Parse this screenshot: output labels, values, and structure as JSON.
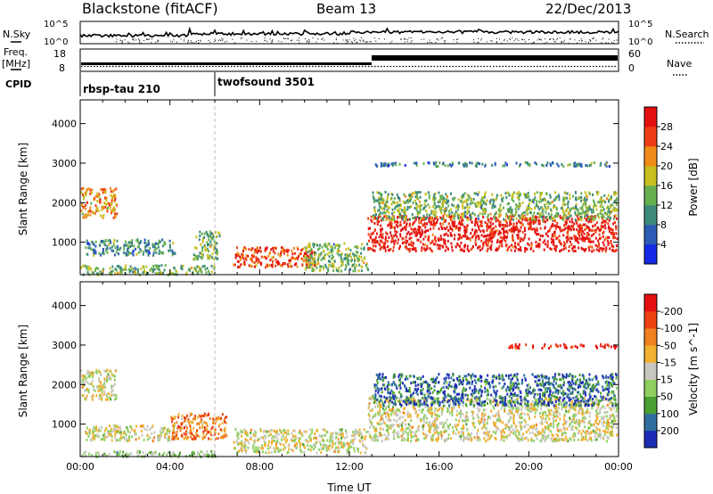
{
  "header": {
    "title": "Blackstone (fitACF)",
    "beam": "Beam 13",
    "date": "22/Dec/2013"
  },
  "panel_labels": {
    "nsky": "N.Sky",
    "nsearch": "N.Search",
    "freq_line1": "Freq.",
    "freq_line2": "[MHz]",
    "nave": "Nave",
    "cpid": "CPID",
    "nsky_top": "10^5",
    "nsky_bot": "10^0",
    "nsearch_top": "10^5",
    "nsearch_bot": "10^0",
    "freq_top": "18",
    "freq_bot": "8",
    "nave_top": "60",
    "nave_bot": "0"
  },
  "cpid_segments": [
    {
      "label": "rbsp-tau 210",
      "start_hour": 0
    },
    {
      "label": "twofsound 3501",
      "start_hour": 6
    }
  ],
  "chart_data": [
    {
      "type": "heatmap",
      "quantity": "Power",
      "xlabel": "",
      "ylabel": "Slant Range [km]",
      "xlim": [
        0,
        24
      ],
      "ylim": [
        180,
        4600
      ],
      "yticks": [
        1000,
        2000,
        3000,
        4000
      ],
      "colorbar": {
        "label": "Power [dB]",
        "ticks": [
          "4",
          "8",
          "12",
          "16",
          "20",
          "24",
          "28"
        ],
        "colors": [
          "#1428e6",
          "#2b5bb5",
          "#3d8a7a",
          "#66b050",
          "#c8c020",
          "#f08c18",
          "#ee3d14",
          "#e41010"
        ]
      },
      "scatter_regions": [
        {
          "hours": [
            0.0,
            1.6
          ],
          "range_km": [
            1650,
            2400
          ],
          "level": 5
        },
        {
          "hours": [
            0.2,
            4.2
          ],
          "range_km": [
            700,
            1100
          ],
          "level": 2
        },
        {
          "hours": [
            0.0,
            6.0
          ],
          "range_km": [
            200,
            450
          ],
          "level": 3
        },
        {
          "hours": [
            5.0,
            6.2
          ],
          "range_km": [
            600,
            1300
          ],
          "level": 3
        },
        {
          "hours": [
            6.8,
            10.5
          ],
          "range_km": [
            400,
            900
          ],
          "level": 6
        },
        {
          "hours": [
            10.0,
            12.8
          ],
          "range_km": [
            300,
            1000
          ],
          "level": 3
        },
        {
          "hours": [
            12.8,
            23.9
          ],
          "range_km": [
            800,
            1700
          ],
          "level": 7
        },
        {
          "hours": [
            13.0,
            23.9
          ],
          "range_km": [
            1600,
            2300
          ],
          "level": 3
        },
        {
          "hours": [
            13.0,
            23.9
          ],
          "range_km": [
            2950,
            3050
          ],
          "level": 2
        }
      ]
    },
    {
      "type": "heatmap",
      "quantity": "Velocity",
      "xlabel": "Time UT",
      "ylabel": "Slant Range [km]",
      "xlim": [
        0,
        24
      ],
      "ylim": [
        180,
        4600
      ],
      "yticks": [
        1000,
        2000,
        3000,
        4000
      ],
      "xticks": [
        "00:00",
        "04:00",
        "08:00",
        "12:00",
        "16:00",
        "20:00",
        "00:00"
      ],
      "colorbar": {
        "label": "Velocity [m s^-1]",
        "ticks": [
          "200",
          "100",
          "50",
          "15",
          "-15",
          "-50",
          "-100",
          "-200"
        ],
        "colors": [
          "#1c2cb4",
          "#2f6ea0",
          "#4aa030",
          "#8fd060",
          "#c8c8c0",
          "#f0b030",
          "#f08020",
          "#ee4010",
          "#e41010"
        ]
      },
      "scatter_regions": [
        {
          "hours": [
            0.0,
            1.6
          ],
          "range_km": [
            1650,
            2400
          ],
          "level": 4
        },
        {
          "hours": [
            0.2,
            4.2
          ],
          "range_km": [
            600,
            1000
          ],
          "level": 4
        },
        {
          "hours": [
            0.0,
            6.0
          ],
          "range_km": [
            200,
            350
          ],
          "level": 3
        },
        {
          "hours": [
            4.0,
            6.5
          ],
          "range_km": [
            650,
            1300
          ],
          "level": 6
        },
        {
          "hours": [
            6.8,
            12.8
          ],
          "range_km": [
            300,
            900
          ],
          "level": 4
        },
        {
          "hours": [
            12.8,
            23.9
          ],
          "range_km": [
            600,
            1700
          ],
          "level": 4
        },
        {
          "hours": [
            13.0,
            23.9
          ],
          "range_km": [
            1500,
            2300
          ],
          "level": 1
        },
        {
          "hours": [
            19.0,
            23.9
          ],
          "range_km": [
            2950,
            3050
          ],
          "level": 8
        }
      ]
    }
  ]
}
